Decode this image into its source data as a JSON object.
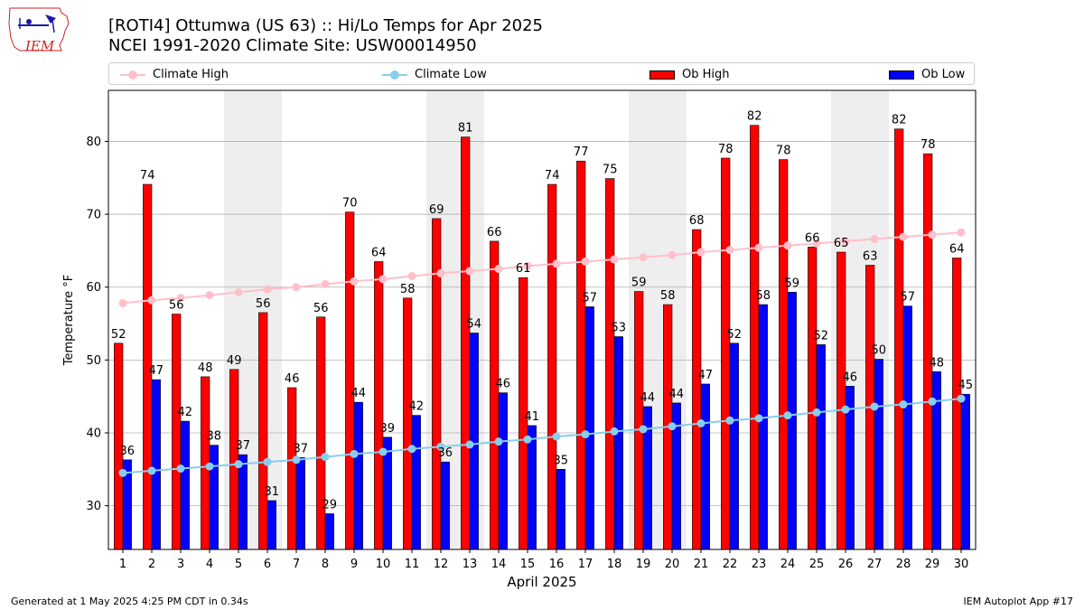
{
  "header": {
    "title_line1": "[ROTI4] Ottumwa (US 63) :: Hi/Lo Temps for Apr 2025",
    "title_line2": "NCEI 1991-2020 Climate Site: USW00014950",
    "logo_text": "IEM"
  },
  "legend": {
    "climate_high": "Climate High",
    "climate_low": "Climate Low",
    "ob_high": "Ob High",
    "ob_low": "Ob Low"
  },
  "footer": {
    "generated": "Generated at 1 May 2025 4:25 PM CDT in 0.34s",
    "app": "IEM Autoplot App #17"
  },
  "colors": {
    "ob_high": "#ff0000",
    "ob_low": "#0000ff",
    "climate_high": "#ffc0cb",
    "climate_low": "#87ceeb",
    "weekend_shade": "#eeeeee",
    "grid": "#b0b0b0"
  },
  "chart_data": {
    "type": "bar",
    "xlabel": "April 2025",
    "ylabel": "Temperature °F",
    "ylim": [
      24,
      87
    ],
    "yticks": [
      30,
      40,
      50,
      60,
      70,
      80
    ],
    "grid": "horizontal",
    "legend_position": "top",
    "categories": [
      "1",
      "2",
      "3",
      "4",
      "5",
      "6",
      "7",
      "8",
      "9",
      "10",
      "11",
      "12",
      "13",
      "14",
      "15",
      "16",
      "17",
      "18",
      "19",
      "20",
      "21",
      "22",
      "23",
      "24",
      "25",
      "26",
      "27",
      "28",
      "29",
      "30"
    ],
    "shaded_days": [
      5,
      6,
      12,
      13,
      19,
      20,
      26,
      27
    ],
    "series": [
      {
        "name": "Ob High",
        "kind": "bar",
        "values": [
          52.3,
          74.1,
          56.3,
          47.7,
          48.7,
          56.5,
          46.2,
          55.9,
          70.3,
          63.5,
          58.5,
          69.4,
          80.6,
          66.3,
          61.3,
          74.1,
          77.3,
          74.9,
          59.4,
          57.6,
          67.9,
          77.7,
          82.2,
          77.5,
          65.5,
          64.8,
          63.0,
          81.7,
          78.3,
          64.0
        ],
        "labels": [
          "52",
          "74",
          "56",
          "48",
          "49",
          "56",
          "46",
          "56",
          "70",
          "64",
          "58",
          "69",
          "81",
          "66",
          "61",
          "74",
          "77",
          "75",
          "59",
          "58",
          "68",
          "78",
          "82",
          "78",
          "66",
          "65",
          "63",
          "82",
          "78",
          "64"
        ]
      },
      {
        "name": "Ob Low",
        "kind": "bar",
        "values": [
          36.3,
          47.3,
          41.6,
          38.3,
          37.0,
          30.7,
          36.6,
          28.9,
          44.2,
          39.4,
          42.4,
          36.0,
          53.7,
          45.5,
          41.0,
          35.0,
          57.3,
          53.2,
          43.6,
          44.1,
          46.7,
          52.3,
          57.6,
          59.3,
          52.1,
          46.4,
          50.1,
          57.4,
          48.4,
          45.3
        ],
        "labels": [
          "36",
          "47",
          "42",
          "38",
          "37",
          "31",
          "37",
          "29",
          "44",
          "39",
          "42",
          "36",
          "54",
          "46",
          "41",
          "35",
          "57",
          "53",
          "44",
          "44",
          "47",
          "52",
          "58",
          "59",
          "52",
          "46",
          "50",
          "57",
          "48",
          "45"
        ]
      },
      {
        "name": "Climate High",
        "kind": "line",
        "values": [
          57.8,
          58.2,
          58.5,
          58.9,
          59.3,
          59.7,
          60.0,
          60.4,
          60.8,
          61.1,
          61.5,
          61.9,
          62.2,
          62.5,
          62.9,
          63.2,
          63.5,
          63.8,
          64.1,
          64.4,
          64.8,
          65.1,
          65.4,
          65.7,
          66.0,
          66.3,
          66.6,
          66.9,
          67.2,
          67.5
        ]
      },
      {
        "name": "Climate Low",
        "kind": "line",
        "values": [
          34.5,
          34.8,
          35.1,
          35.4,
          35.7,
          36.0,
          36.3,
          36.7,
          37.1,
          37.4,
          37.8,
          38.1,
          38.4,
          38.8,
          39.1,
          39.5,
          39.8,
          40.2,
          40.5,
          40.9,
          41.3,
          41.7,
          42.0,
          42.4,
          42.8,
          43.2,
          43.6,
          43.9,
          44.3,
          44.7
        ]
      }
    ]
  }
}
